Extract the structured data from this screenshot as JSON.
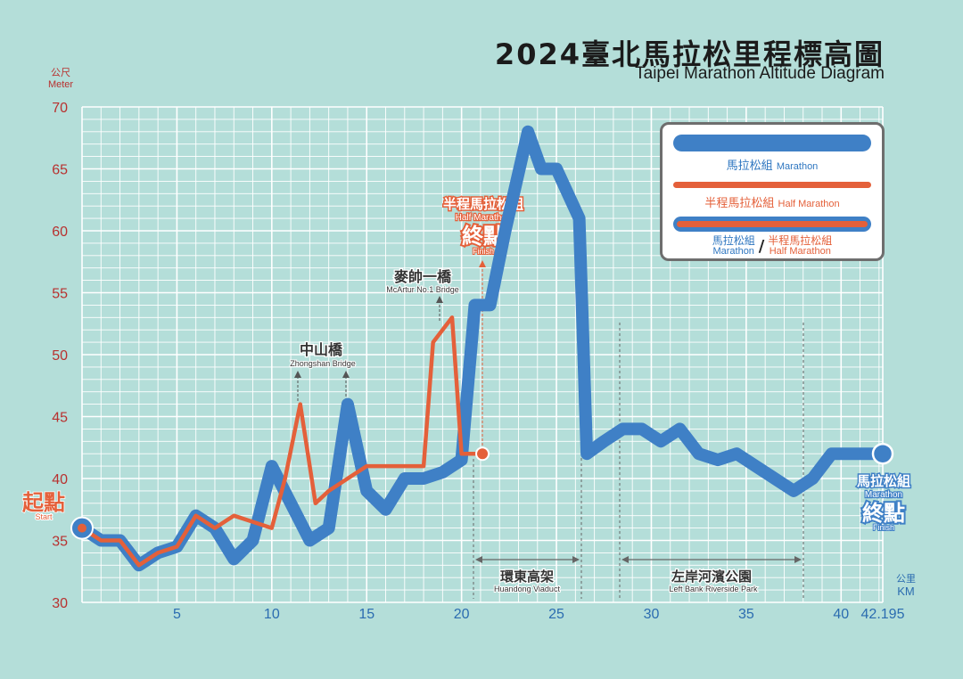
{
  "page": {
    "title_zh": "2024臺北馬拉松里程標高圖",
    "title_en": "Taipei Marathon Altitude Diagram",
    "y_unit_zh": "公尺",
    "y_unit_en": "Meter",
    "x_unit_zh": "公里",
    "x_unit_en": "KM"
  },
  "legend": {
    "marathon_zh": "馬拉松組",
    "marathon_en": "Marathon",
    "half_zh": "半程馬拉松組",
    "half_en": "Half Marathon",
    "shared_marathon_zh": "馬拉松組",
    "shared_marathon_en": "Marathon",
    "shared_sep": "/",
    "shared_half_zh": "半程馬拉松組",
    "shared_half_en": "Half Marathon"
  },
  "labels": {
    "start_zh": "起點",
    "start_en": "Start",
    "half_finish_group_zh": "半程馬拉松組",
    "half_finish_group_en": "Half Marathon",
    "half_finish_zh": "終點",
    "half_finish_en": "Finish",
    "full_finish_group_zh": "馬拉松組",
    "full_finish_group_en": "Marathon",
    "full_finish_zh": "終點",
    "full_finish_en": "Finish",
    "maishuai_zh": "麥帥一橋",
    "maishuai_en": "McArtur No.1 Bridge",
    "zhongshan_zh": "中山橋",
    "zhongshan_en": "Zhongshan Bridge",
    "huandong_zh": "環東高架",
    "huandong_en": "Huandong Viaduct",
    "riverside_zh": "左岸河濱公園",
    "riverside_en": "Left Bank Riverside Park"
  },
  "colors": {
    "background": "#b4ded9",
    "grid": "#ffffff",
    "marathon": "#3f80c6",
    "half_marathon": "#e4603a",
    "axis_text_y": "#b8312f",
    "axis_text_x": "#2b6cb0"
  },
  "chart_data": {
    "type": "line",
    "title": "2024臺北馬拉松里程標高圖",
    "subtitle": "Taipei Marathon Altitude Diagram",
    "xlabel": "公里 KM",
    "ylabel": "公尺 Meter",
    "xlim": [
      0,
      42.195
    ],
    "ylim": [
      30,
      70
    ],
    "x_ticks": [
      5,
      10,
      15,
      20,
      25,
      30,
      35,
      40,
      42.195
    ],
    "x_tick_labels": [
      "5",
      "10",
      "15",
      "20",
      "25",
      "30",
      "35",
      "40",
      "42.195"
    ],
    "y_ticks": [
      30,
      35,
      40,
      45,
      50,
      55,
      60,
      65,
      70
    ],
    "grid": true,
    "legend_position": "top-right",
    "series": [
      {
        "name": "馬拉松組 Marathon",
        "color": "#3f80c6",
        "x": [
          0,
          1,
          2,
          3,
          4,
          5,
          6,
          7,
          8,
          9,
          10,
          11,
          12,
          13,
          14,
          15,
          16,
          17,
          18,
          19,
          20,
          20.7,
          21.5,
          22.3,
          23.5,
          24.2,
          25,
          26.2,
          26.6,
          27.5,
          28.5,
          29.5,
          30.5,
          31.5,
          32.5,
          33.5,
          34.5,
          35.5,
          36.5,
          37.5,
          38.5,
          39.5,
          40.5,
          41.5,
          42.195
        ],
        "y": [
          36,
          35,
          35,
          33,
          34,
          34.5,
          37,
          36,
          33.5,
          35,
          41,
          38,
          35,
          36,
          46,
          39,
          37.5,
          40,
          40,
          40.5,
          41.5,
          54,
          54,
          60,
          68,
          65,
          65,
          61,
          42,
          43,
          44,
          44,
          43,
          44,
          42,
          41.5,
          42,
          41,
          40,
          39,
          40,
          42,
          42,
          42,
          42
        ]
      },
      {
        "name": "半程馬拉松組 Half Marathon",
        "color": "#e4603a",
        "x": [
          0,
          1,
          2,
          3,
          4,
          5,
          6,
          7,
          8,
          9,
          10,
          10.7,
          11.5,
          12.3,
          13,
          14,
          15,
          16,
          17,
          18,
          18.5,
          19.5,
          20,
          21.1
        ],
        "y": [
          36,
          35,
          35,
          33,
          34,
          34.5,
          37,
          36,
          37,
          36.5,
          36,
          40,
          46,
          38,
          39,
          40,
          41,
          41,
          41,
          41,
          51,
          53,
          42,
          42
        ]
      }
    ],
    "annotations": [
      {
        "x": 0,
        "text": "起點 Start"
      },
      {
        "x": 11.5,
        "text": "中山橋 Zhongshan Bridge"
      },
      {
        "x": 14,
        "text": "中山橋 Zhongshan Bridge"
      },
      {
        "x": 19,
        "text": "麥帥一橋 McArtur No.1 Bridge"
      },
      {
        "x": 21.1,
        "text": "半程馬拉松組 Half Marathon 終點 Finish"
      },
      {
        "x_range": [
          20.7,
          26.5
        ],
        "text": "環東高架 Huandong Viaduct"
      },
      {
        "x_range": [
          28.5,
          38
        ],
        "text": "左岸河濱公園 Left Bank Riverside Park"
      },
      {
        "x": 42.195,
        "text": "馬拉松組 Marathon 終點 Finish"
      }
    ]
  }
}
